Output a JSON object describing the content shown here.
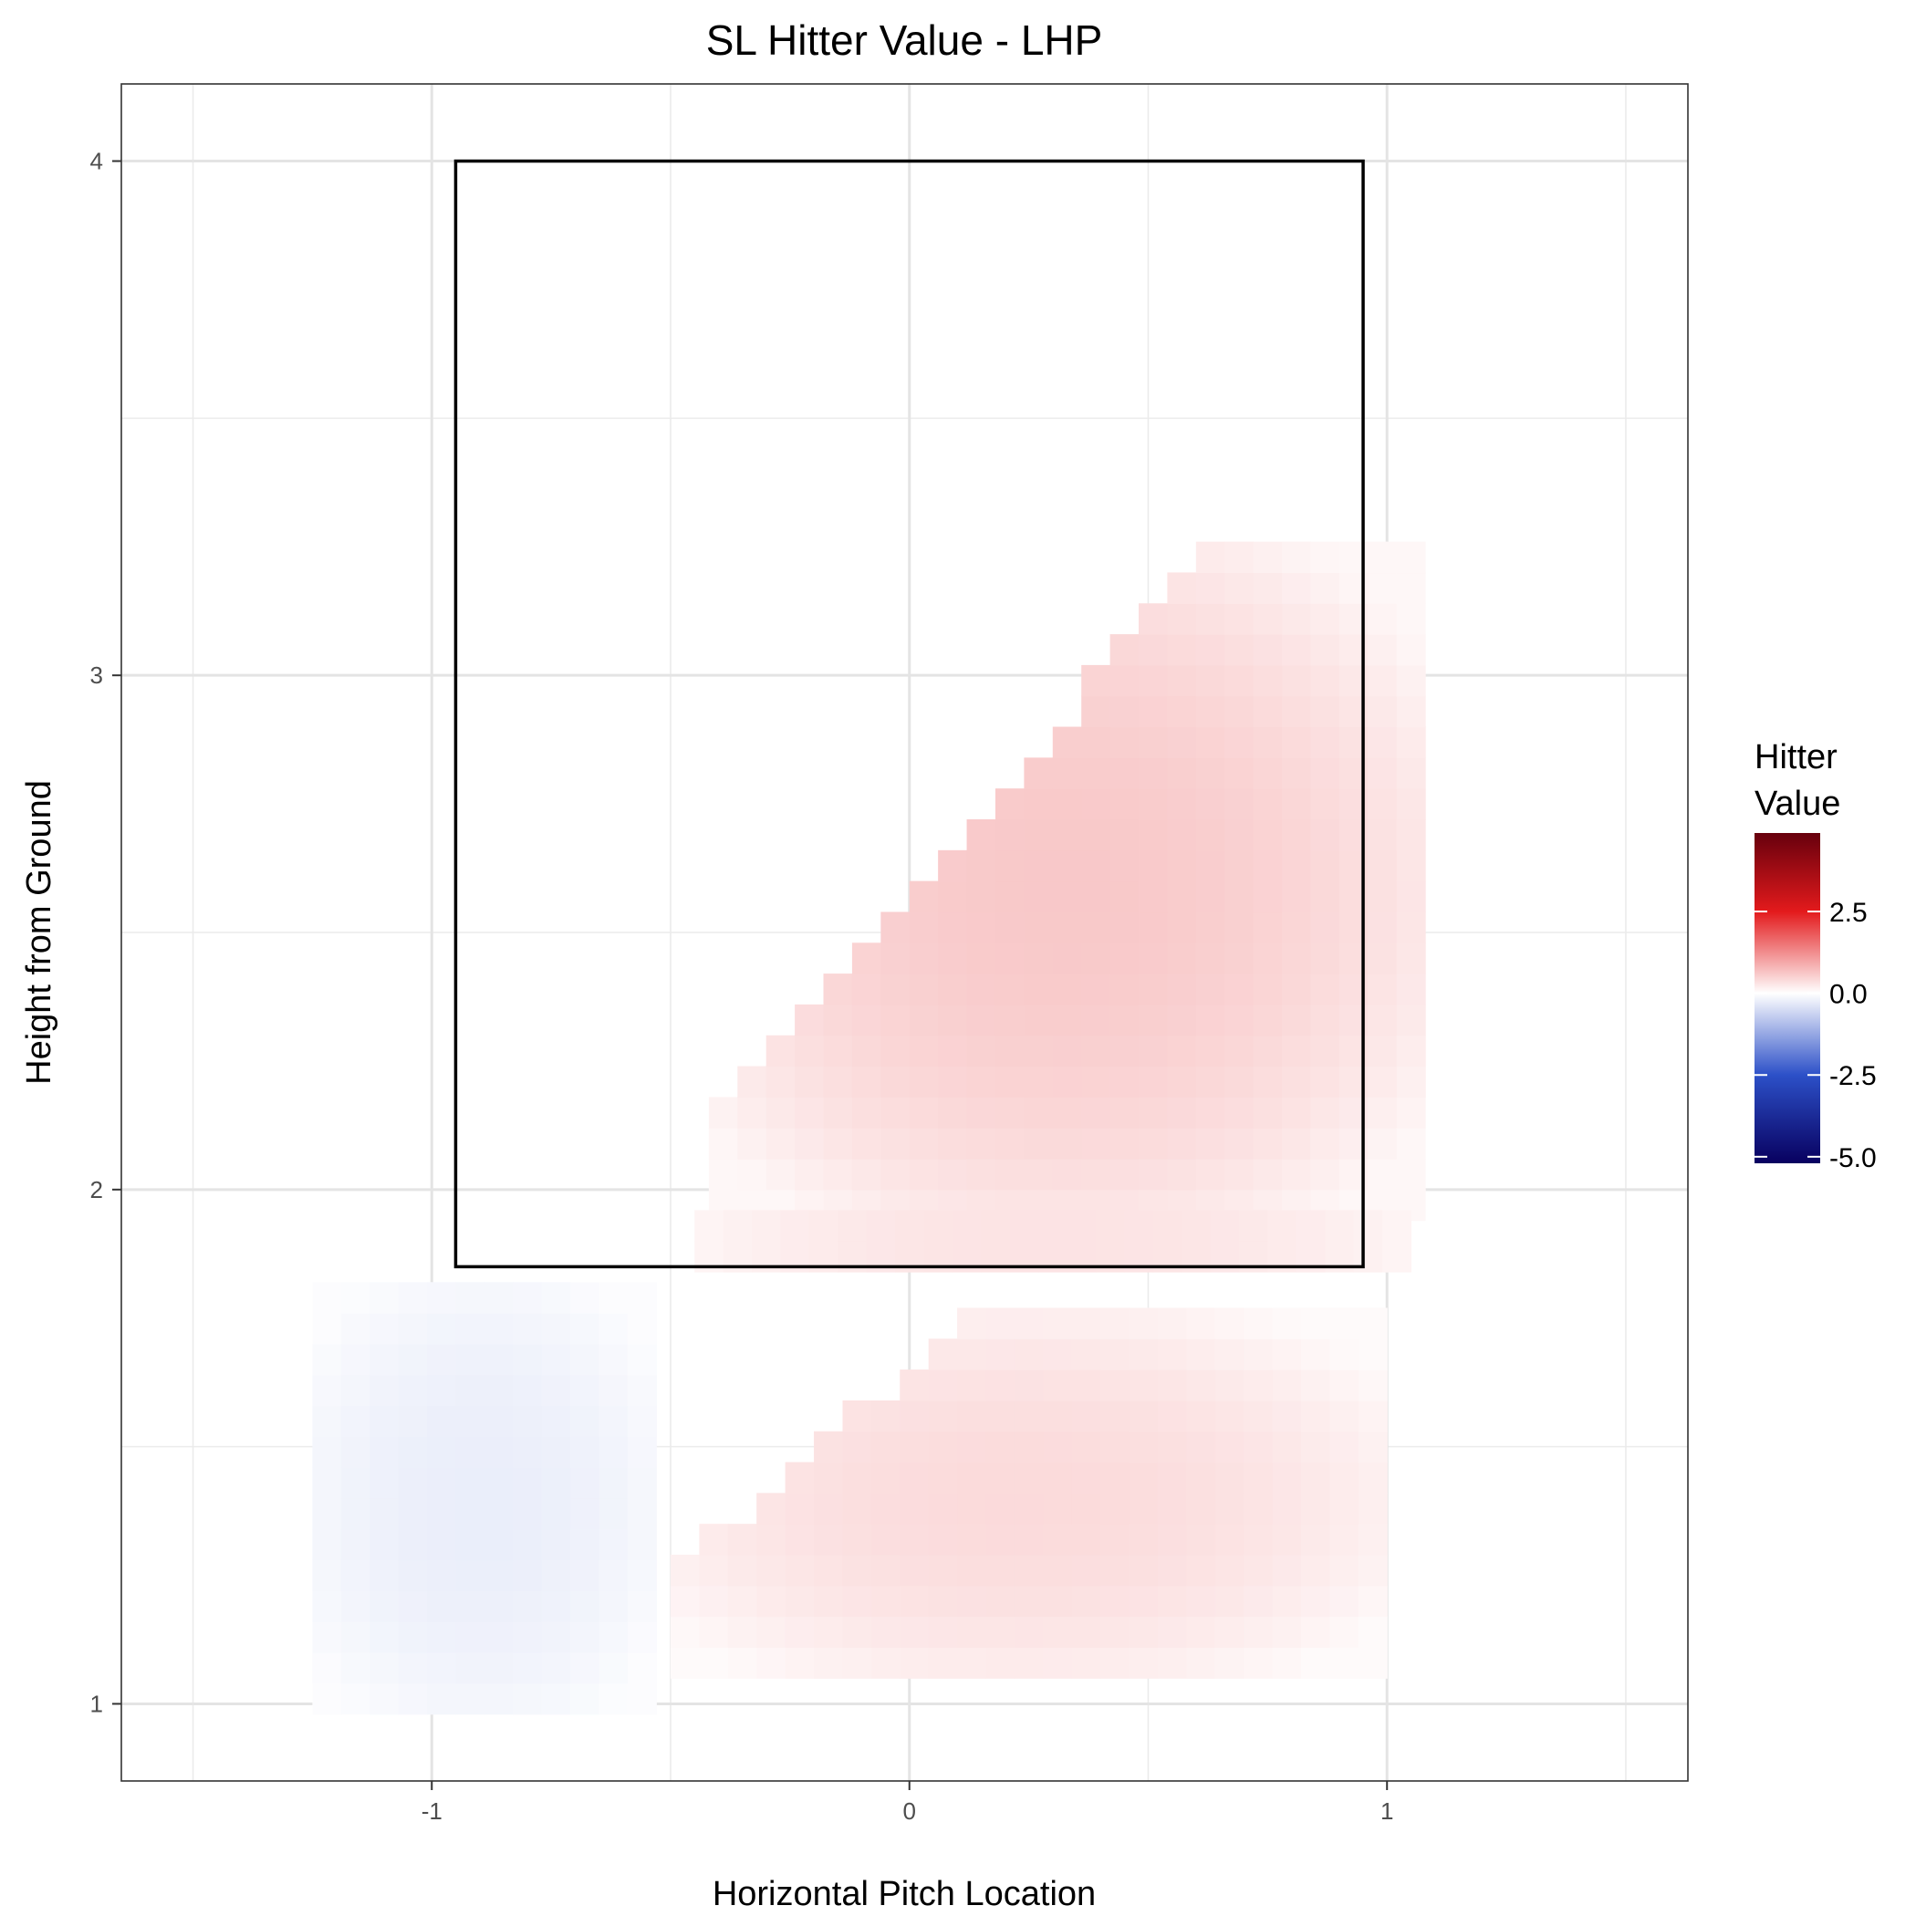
{
  "chart_data": {
    "type": "heatmap",
    "title": "SL Hitter Value - LHP",
    "xlabel": "Horizontal Pitch Location",
    "ylabel": "Height from Ground",
    "xlim": [
      -1.65,
      1.63
    ],
    "ylim": [
      0.85,
      4.15
    ],
    "x_ticks": [
      -1,
      0,
      1
    ],
    "x_tick_labels": [
      "-1",
      "0",
      "1"
    ],
    "y_ticks": [
      1,
      2,
      3,
      4
    ],
    "y_tick_labels": [
      "1",
      "2",
      "3",
      "4"
    ],
    "grid": true,
    "strike_zone": {
      "x0": -0.95,
      "x1": 0.95,
      "y0": 1.85,
      "y1": 4.0
    },
    "cell_size": {
      "dx": 0.06,
      "dy": 0.06
    },
    "regions": [
      {
        "x0": -0.42,
        "x1": 1.06,
        "y0": 1.94,
        "y1": 3.24,
        "slope": 1.05,
        "peak": 0.6
      },
      {
        "x0": -0.45,
        "x1": 1.05,
        "y0": 1.84,
        "y1": 1.96,
        "slope": 0,
        "peak": 0.35
      },
      {
        "x0": -1.25,
        "x1": -0.55,
        "y0": 0.98,
        "y1": 1.8,
        "slope": 0,
        "peak": -0.25
      },
      {
        "x0": -0.5,
        "x1": 0.96,
        "y0": 1.05,
        "y1": 1.75,
        "slope": 0.8,
        "peak": 0.4
      }
    ],
    "legend": {
      "title_lines": [
        "Hitter",
        "Value"
      ],
      "placement": "right",
      "min": -5.2,
      "max": 4.9,
      "ticks": [
        2.5,
        0.0,
        -2.5,
        -5.0
      ],
      "tick_labels": [
        "2.5",
        "0.0",
        "-2.5",
        "-5.0"
      ],
      "colors": {
        "high": "#67000d",
        "mid_high": "#e31a1c",
        "mid": "#ffffff",
        "mid_low": "#2c50c8",
        "low": "#08005f"
      }
    }
  }
}
